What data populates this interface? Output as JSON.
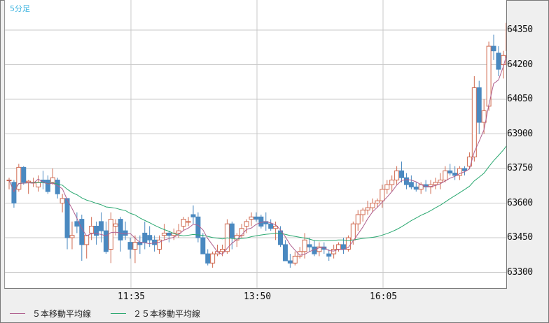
{
  "title": "5分足",
  "colors": {
    "up": "#d0694f",
    "down": "#4a89c0",
    "ma5": "#b0608f",
    "ma25": "#2aa870",
    "grid": "#c8c8c8",
    "title": "#3fb5e0"
  },
  "legend": [
    {
      "label": "５本移動平均線",
      "color": "#b0608f"
    },
    {
      "label": "２５本移動平均線",
      "color": "#2aa870"
    }
  ],
  "chart_data": {
    "type": "candlestick",
    "title": "5分足",
    "xlabel": "",
    "ylabel": "",
    "ylim": [
      63230,
      64480
    ],
    "y_ticks": [
      63300,
      63450,
      63600,
      63750,
      63900,
      64050,
      64200,
      64350
    ],
    "x_ticks": [
      {
        "label": "11:35",
        "index": 25
      },
      {
        "label": "13:50",
        "index": 52
      },
      {
        "label": "16:05",
        "index": 78
      }
    ],
    "grid": true,
    "legend_position": "bottom",
    "candles": [
      [
        63700,
        63710,
        63660,
        63700
      ],
      [
        63690,
        63700,
        63580,
        63600
      ],
      [
        63660,
        63770,
        63650,
        63755
      ],
      [
        63755,
        63760,
        63680,
        63690
      ],
      [
        63690,
        63700,
        63640,
        63695
      ],
      [
        63690,
        63710,
        63670,
        63690
      ],
      [
        63670,
        63720,
        63650,
        63690
      ],
      [
        63700,
        63740,
        63660,
        63690
      ],
      [
        63700,
        63720,
        63640,
        63650
      ],
      [
        63690,
        63750,
        63680,
        63710
      ],
      [
        63700,
        63710,
        63620,
        63640
      ],
      [
        63600,
        63640,
        63560,
        63620
      ],
      [
        63620,
        63620,
        63400,
        63450
      ],
      [
        63450,
        63520,
        63400,
        63460
      ],
      [
        63520,
        63560,
        63470,
        63500
      ],
      [
        63530,
        63550,
        63350,
        63420
      ],
      [
        63420,
        63450,
        63360,
        63460
      ],
      [
        63470,
        63540,
        63440,
        63500
      ],
      [
        63500,
        63520,
        63420,
        63460
      ],
      [
        63520,
        63560,
        63430,
        63480
      ],
      [
        63480,
        63520,
        63380,
        63390
      ],
      [
        63400,
        63560,
        63340,
        63530
      ],
      [
        63500,
        63530,
        63460,
        63510
      ],
      [
        63530,
        63540,
        63390,
        63440
      ],
      [
        63480,
        63520,
        63440,
        63460
      ],
      [
        63430,
        63450,
        63360,
        63400
      ],
      [
        63400,
        63460,
        63340,
        63430
      ],
      [
        63430,
        63460,
        63380,
        63420
      ],
      [
        63470,
        63520,
        63400,
        63430
      ],
      [
        63460,
        63500,
        63410,
        63440
      ],
      [
        63440,
        63460,
        63390,
        63420
      ],
      [
        63400,
        63460,
        63380,
        63440
      ],
      [
        63460,
        63510,
        63440,
        63470
      ],
      [
        63470,
        63480,
        63430,
        63460
      ],
      [
        63460,
        63490,
        63440,
        63470
      ],
      [
        63470,
        63510,
        63450,
        63480
      ],
      [
        63500,
        63540,
        63480,
        63530
      ],
      [
        63520,
        63540,
        63500,
        63520
      ],
      [
        63550,
        63590,
        63510,
        63540
      ],
      [
        63540,
        63560,
        63430,
        63450
      ],
      [
        63450,
        63470,
        63380,
        63380
      ],
      [
        63380,
        63400,
        63330,
        63340
      ],
      [
        63340,
        63390,
        63320,
        63380
      ],
      [
        63380,
        63420,
        63370,
        63390
      ],
      [
        63390,
        63420,
        63370,
        63400
      ],
      [
        63390,
        63530,
        63380,
        63510
      ],
      [
        63510,
        63520,
        63400,
        63450
      ],
      [
        63440,
        63470,
        63410,
        63460
      ],
      [
        63460,
        63510,
        63450,
        63490
      ],
      [
        63500,
        63530,
        63470,
        63520
      ],
      [
        63530,
        63560,
        63500,
        63540
      ],
      [
        63540,
        63560,
        63520,
        63530
      ],
      [
        63540,
        63550,
        63490,
        63500
      ],
      [
        63520,
        63560,
        63480,
        63510
      ],
      [
        63510,
        63530,
        63480,
        63490
      ],
      [
        63490,
        63520,
        63440,
        63500
      ],
      [
        63480,
        63500,
        63410,
        63420
      ],
      [
        63420,
        63440,
        63350,
        63350
      ],
      [
        63350,
        63380,
        63320,
        63340
      ],
      [
        63340,
        63390,
        63330,
        63370
      ],
      [
        63370,
        63410,
        63360,
        63390
      ],
      [
        63390,
        63470,
        63360,
        63440
      ],
      [
        63420,
        63450,
        63390,
        63410
      ],
      [
        63410,
        63440,
        63370,
        63380
      ],
      [
        63390,
        63430,
        63370,
        63410
      ],
      [
        63410,
        63430,
        63380,
        63400
      ],
      [
        63380,
        63400,
        63350,
        63370
      ],
      [
        63380,
        63420,
        63360,
        63400
      ],
      [
        63400,
        63430,
        63390,
        63420
      ],
      [
        63420,
        63450,
        63380,
        63400
      ],
      [
        63400,
        63460,
        63390,
        63450
      ],
      [
        63440,
        63520,
        63420,
        63510
      ],
      [
        63510,
        63570,
        63480,
        63550
      ],
      [
        63550,
        63580,
        63520,
        63570
      ],
      [
        63570,
        63610,
        63550,
        63580
      ],
      [
        63580,
        63620,
        63560,
        63600
      ],
      [
        63600,
        63620,
        63580,
        63610
      ],
      [
        63610,
        63680,
        63580,
        63660
      ],
      [
        63660,
        63700,
        63640,
        63680
      ],
      [
        63680,
        63720,
        63650,
        63700
      ],
      [
        63700,
        63760,
        63680,
        63740
      ],
      [
        63740,
        63780,
        63690,
        63710
      ],
      [
        63710,
        63730,
        63660,
        63680
      ],
      [
        63690,
        63720,
        63660,
        63670
      ],
      [
        63670,
        63690,
        63650,
        63660
      ],
      [
        63660,
        63690,
        63640,
        63680
      ],
      [
        63680,
        63700,
        63650,
        63670
      ],
      [
        63670,
        63700,
        63640,
        63680
      ],
      [
        63680,
        63710,
        63660,
        63690
      ],
      [
        63690,
        63730,
        63660,
        63700
      ],
      [
        63700,
        63760,
        63690,
        63740
      ],
      [
        63740,
        63770,
        63720,
        63730
      ],
      [
        63730,
        63760,
        63700,
        63720
      ],
      [
        63720,
        63760,
        63700,
        63750
      ],
      [
        63750,
        63760,
        63720,
        63740
      ],
      [
        63760,
        63820,
        63750,
        63800
      ],
      [
        63800,
        64150,
        63780,
        64100
      ],
      [
        64100,
        64130,
        63900,
        63950
      ],
      [
        63950,
        64050,
        63900,
        64000
      ],
      [
        64020,
        64300,
        64000,
        64280
      ],
      [
        64280,
        64330,
        64220,
        64260
      ],
      [
        64250,
        64280,
        64150,
        64180
      ],
      [
        64200,
        64260,
        64140,
        64240
      ],
      [
        64260,
        64410,
        64240,
        64380
      ],
      [
        64380,
        64420,
        64240,
        64280
      ]
    ],
    "ma5_color": "#b0608f",
    "ma25_color": "#2aa870"
  }
}
